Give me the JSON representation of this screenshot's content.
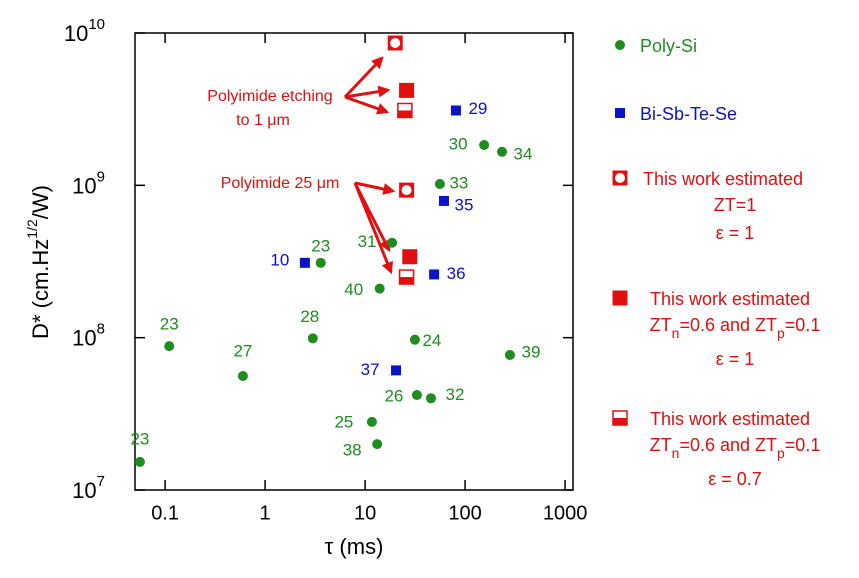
{
  "chart_data": {
    "type": "scatter",
    "xlabel": "τ (ms)",
    "ylabel": [
      "D* (cm.Hz",
      "1/2",
      "/W)"
    ],
    "xscale": "log",
    "yscale": "log",
    "xlim": [
      0.05,
      1200
    ],
    "ylim": [
      10000000,
      10000000000
    ],
    "xticks": [
      0.1,
      1,
      10,
      100,
      1000
    ],
    "yticks": [
      {
        "value": 10000000,
        "label": "10",
        "exponent": "7"
      },
      {
        "value": 100000000,
        "label": "10",
        "exponent": "8"
      },
      {
        "value": 1000000000,
        "label": "10",
        "exponent": "9"
      },
      {
        "value": 10000000000,
        "label": "10",
        "exponent": "10"
      }
    ],
    "annotations": [
      "Polyimide etching",
      "to 1 μm",
      "Polyimide 25 μm"
    ],
    "series": [
      {
        "name": "Poly-Si",
        "color": "#1e8c1e",
        "marker": "circle",
        "x": [
          0.056,
          0.11,
          0.6,
          3.0,
          3.6,
          14,
          18.6,
          31.5,
          33,
          45.6,
          56,
          155,
          234,
          281,
          11.7,
          13.2
        ],
        "values": [
          15300000,
          88000000,
          56000000,
          99000000,
          310000000,
          210000000,
          420000000,
          97000000,
          42000000,
          40000000,
          1020000000,
          1840000000,
          1660000000,
          77000000,
          28000000,
          20000000
        ],
        "point_labels": [
          "23",
          "23",
          "27",
          "28",
          "23",
          "40",
          "31",
          "24",
          "26",
          "32",
          "33",
          "30",
          "34",
          "39",
          "25",
          "38"
        ]
      },
      {
        "name": "Bi-Sb-Te-Se",
        "color": "#0a14c8",
        "marker": "square",
        "x": [
          2.5,
          49,
          61.5,
          81,
          20.4
        ],
        "values": [
          310000000,
          260000000,
          790000000,
          3100000000,
          61000000
        ],
        "point_labels": [
          "10",
          "36",
          "35",
          "29",
          "37"
        ]
      },
      {
        "name": "This work estimated",
        "name_lines": [
          [
            "ZT=1"
          ],
          [
            "ε = 1"
          ]
        ],
        "color": "#e01010",
        "marker": "circle-in-square",
        "x": [
          20,
          26
        ],
        "values": [
          8600000000,
          930000000
        ]
      },
      {
        "name": "This work estimated",
        "name_lines": [
          [
            "ZT",
            "n",
            "=0.6 and ZT",
            "p",
            "=0.1"
          ],
          [
            "ε = 1"
          ]
        ],
        "color": "#e01010",
        "marker": "filled-square",
        "x": [
          26,
          28
        ],
        "values": [
          4200000000,
          340000000
        ]
      },
      {
        "name": "This work estimated",
        "name_lines": [
          [
            "ZT",
            "n",
            "=0.6 and ZT",
            "p",
            "=0.1"
          ],
          [
            "ε = 0.7"
          ]
        ],
        "color": "#e01010",
        "marker": "half-square",
        "x": [
          25,
          26
        ],
        "values": [
          3100000000,
          250000000
        ]
      }
    ]
  }
}
